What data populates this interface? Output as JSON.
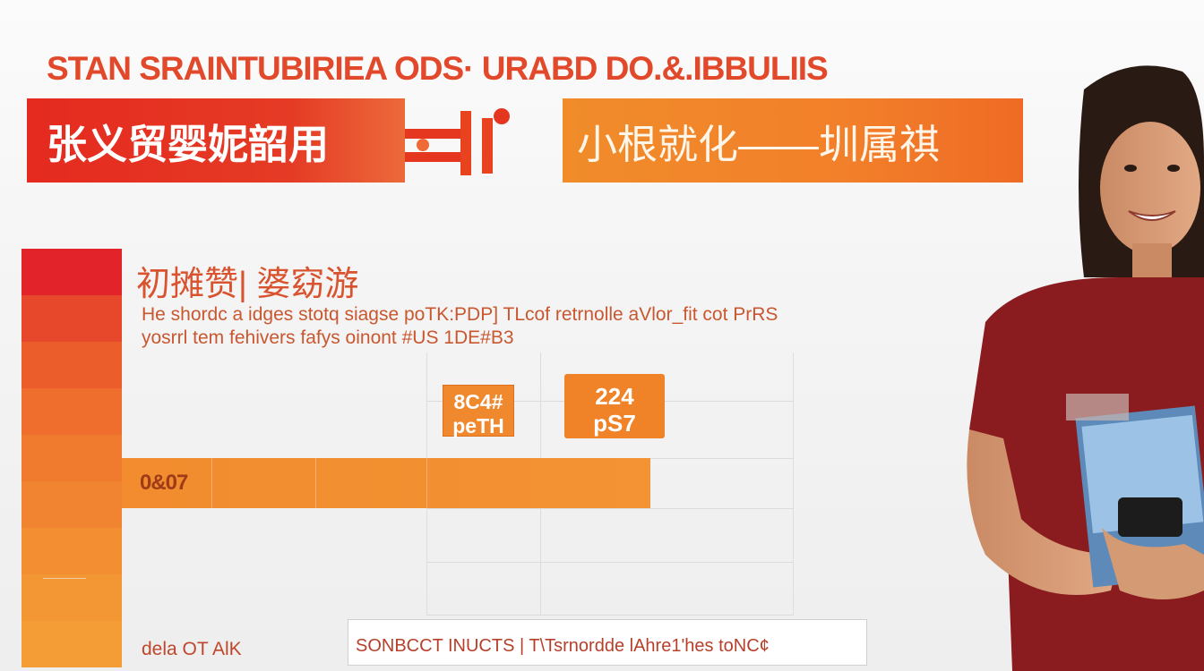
{
  "header": {
    "title": "STAN SRAINTUBIRIEA ODS· URABD DO.&.IBBULIIS"
  },
  "banners": {
    "left_text": "张义贸婴妮韶用",
    "right_text": "小根就化——圳属祺"
  },
  "section": {
    "heading": "初摊赞| 婆窈游",
    "line_1": "He shordc a idges stotq siagse poTK:PDP] TLcof retrnolle aVlor_fit cot PrRS",
    "line_2": "yosrrl tem fehivers fafys oinont #US 1DE#B3"
  },
  "chart_area": {
    "bar_label": "0&07",
    "badge_1_line_1": "8C4#",
    "badge_1_line_2": "peTH",
    "badge_2_line_1": "224",
    "badge_2_line_2": "pS7"
  },
  "footer": {
    "left_text": "dela OT AlK",
    "box_text": "SONBCCT INUCTS | T\\Tsrnordde lAhre1'hes toNC¢"
  },
  "colors": {
    "primary_red": "#e52a1f",
    "primary_orange": "#f08c2a",
    "text_red": "#e2492b",
    "shirt_maroon": "#8a1c1f"
  },
  "icons": {
    "connector": "red-arrow-connector-icon",
    "phone": "smartphone-icon"
  }
}
